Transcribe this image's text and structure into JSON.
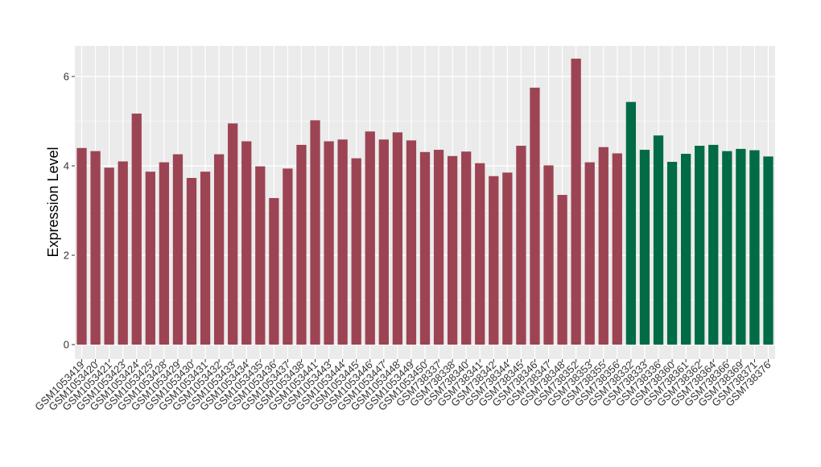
{
  "chart_data": {
    "type": "bar",
    "title": "",
    "xlabel": "",
    "ylabel": "Expression Level",
    "ylim": [
      0,
      6.65
    ],
    "yticks": [
      0,
      2,
      4,
      6
    ],
    "grid": true,
    "legend": "none",
    "colors": {
      "group1": "#9C4454",
      "group2": "#006B45",
      "panel": "#EBEBEB",
      "grid": "#FFFFFF"
    },
    "categories": [
      "GSM1053419",
      "GSM1053420",
      "GSM1053421",
      "GSM1053423",
      "GSM1053424",
      "GSM1053425",
      "GSM1053428",
      "GSM1053429",
      "GSM1053430",
      "GSM1053431",
      "GSM1053432",
      "GSM1053433",
      "GSM1053434",
      "GSM1053435",
      "GSM1053436",
      "GSM1053437",
      "GSM1053438",
      "GSM1053441",
      "GSM1053443",
      "GSM1053444",
      "GSM1053445",
      "GSM1053446",
      "GSM1053447",
      "GSM1053448",
      "GSM1053449",
      "GSM1053450",
      "GSM738337",
      "GSM738338",
      "GSM738340",
      "GSM738341",
      "GSM738342",
      "GSM738344",
      "GSM738345",
      "GSM738346",
      "GSM738347",
      "GSM738348",
      "GSM738352",
      "GSM738353",
      "GSM738355",
      "GSM738356",
      "GSM738332",
      "GSM738333",
      "GSM738336",
      "GSM738360",
      "GSM738361",
      "GSM738362",
      "GSM738364",
      "GSM738366",
      "GSM738369",
      "GSM738371",
      "GSM738376"
    ],
    "values": [
      4.4,
      4.33,
      3.96,
      4.1,
      5.17,
      3.87,
      4.08,
      4.26,
      3.73,
      3.87,
      4.26,
      4.95,
      4.55,
      3.99,
      3.28,
      3.94,
      4.47,
      5.02,
      4.55,
      4.59,
      4.17,
      4.77,
      4.59,
      4.75,
      4.57,
      4.31,
      4.36,
      4.22,
      4.32,
      4.06,
      3.77,
      3.85,
      4.45,
      5.75,
      4.01,
      3.35,
      6.4,
      4.08,
      4.42,
      4.28,
      5.43,
      4.36,
      4.68,
      4.09,
      4.27,
      4.45,
      4.47,
      4.33,
      4.38,
      4.35,
      4.21
    ],
    "groups": [
      "group1",
      "group1",
      "group1",
      "group1",
      "group1",
      "group1",
      "group1",
      "group1",
      "group1",
      "group1",
      "group1",
      "group1",
      "group1",
      "group1",
      "group1",
      "group1",
      "group1",
      "group1",
      "group1",
      "group1",
      "group1",
      "group1",
      "group1",
      "group1",
      "group1",
      "group1",
      "group1",
      "group1",
      "group1",
      "group1",
      "group1",
      "group1",
      "group1",
      "group1",
      "group1",
      "group1",
      "group1",
      "group1",
      "group1",
      "group1",
      "group2",
      "group2",
      "group2",
      "group2",
      "group2",
      "group2",
      "group2",
      "group2",
      "group2",
      "group2",
      "group2"
    ]
  }
}
